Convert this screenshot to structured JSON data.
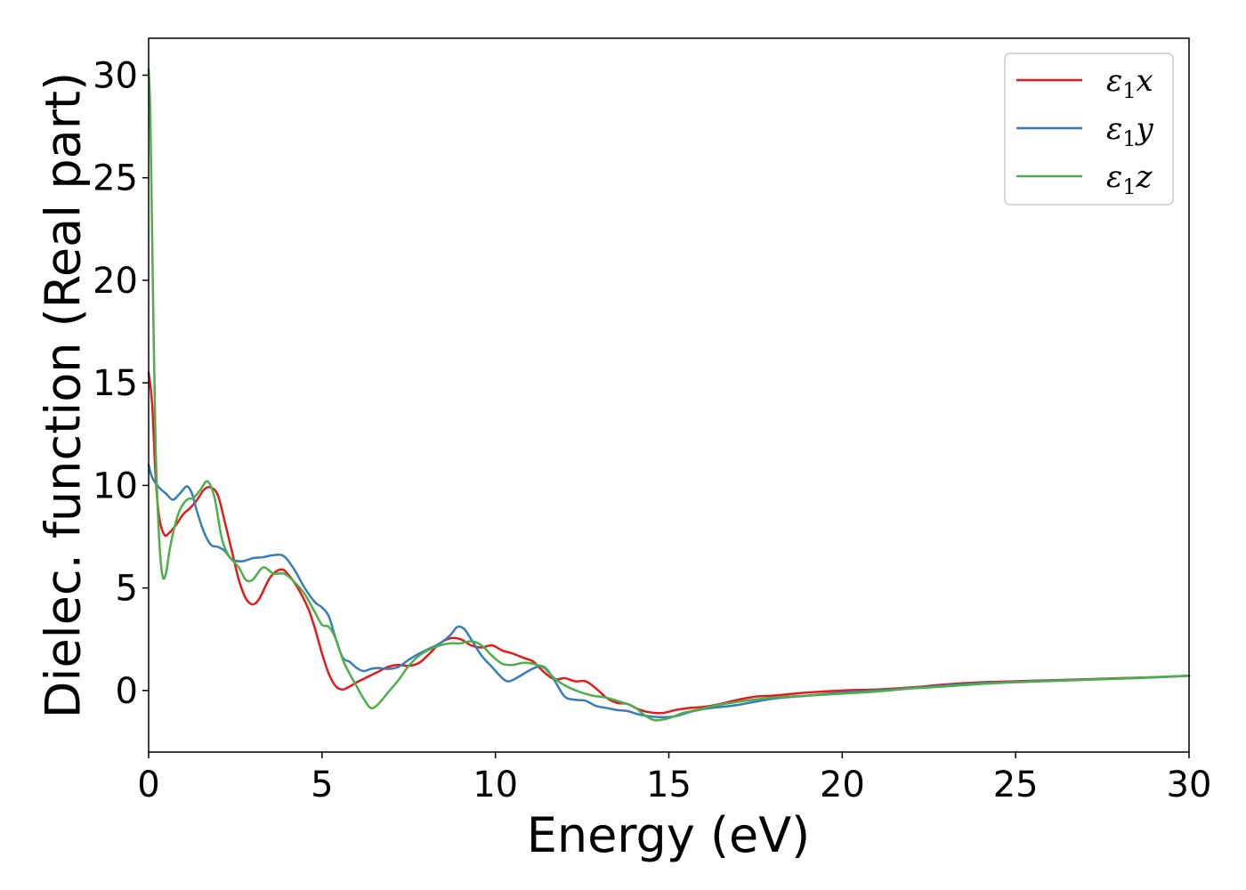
{
  "chart_data": {
    "type": "line",
    "xlabel": "Energy (eV)",
    "ylabel": "Dielec. function (Real part)",
    "xlim": [
      0,
      30
    ],
    "ylim": [
      -3,
      31.8
    ],
    "xticks": [
      0,
      5,
      10,
      15,
      20,
      25,
      30
    ],
    "yticks": [
      0,
      5,
      10,
      15,
      20,
      25,
      30
    ],
    "grid": false,
    "legend_position": "top-right",
    "series": [
      {
        "name": "ε1x",
        "legend": {
          "symbol": "ε",
          "sub": "1",
          "var": "x"
        },
        "color": "#e41a1c",
        "x": [
          0,
          0.1,
          0.2,
          0.3,
          0.45,
          0.6,
          0.8,
          1.0,
          1.2,
          1.4,
          1.6,
          1.8,
          2.0,
          2.2,
          2.4,
          2.6,
          2.8,
          3.0,
          3.2,
          3.5,
          3.8,
          4.0,
          4.3,
          4.6,
          4.8,
          5.0,
          5.2,
          5.4,
          5.6,
          5.8,
          6.0,
          6.3,
          6.6,
          6.9,
          7.2,
          7.5,
          7.8,
          8.1,
          8.4,
          8.7,
          9.0,
          9.3,
          9.6,
          9.9,
          10.2,
          10.5,
          10.8,
          11.1,
          11.4,
          11.7,
          12.0,
          12.3,
          12.6,
          12.9,
          13.2,
          13.5,
          13.8,
          14.1,
          14.4,
          14.8,
          15.2,
          15.6,
          16.0,
          16.5,
          17.0,
          17.5,
          18.0,
          19.0,
          20.0,
          21.0,
          22.0,
          23.0,
          24.0,
          25.0,
          26.0,
          27.0,
          28.0,
          29.0,
          30.0
        ],
        "y": [
          15.5,
          14.0,
          10.5,
          8.5,
          7.6,
          7.7,
          8.1,
          8.6,
          8.9,
          9.3,
          9.8,
          9.9,
          9.5,
          8.2,
          6.8,
          5.4,
          4.5,
          4.2,
          4.5,
          5.5,
          5.9,
          5.7,
          5.0,
          4.0,
          3.0,
          1.8,
          0.8,
          0.2,
          0.05,
          0.2,
          0.4,
          0.65,
          0.9,
          1.15,
          1.25,
          1.2,
          1.35,
          1.8,
          2.3,
          2.55,
          2.5,
          2.2,
          2.1,
          2.2,
          1.95,
          1.8,
          1.6,
          1.4,
          0.9,
          0.55,
          0.6,
          0.45,
          0.45,
          0.1,
          -0.35,
          -0.6,
          -0.65,
          -0.9,
          -1.05,
          -1.1,
          -0.95,
          -0.85,
          -0.8,
          -0.65,
          -0.45,
          -0.3,
          -0.25,
          -0.1,
          0.0,
          0.05,
          0.15,
          0.3,
          0.4,
          0.45,
          0.5,
          0.55,
          0.6,
          0.65,
          0.72
        ]
      },
      {
        "name": "ε1y",
        "legend": {
          "symbol": "ε",
          "sub": "1",
          "var": "y"
        },
        "color": "#377eb8",
        "x": [
          0,
          0.1,
          0.3,
          0.5,
          0.7,
          0.9,
          1.1,
          1.25,
          1.4,
          1.6,
          1.8,
          2.0,
          2.2,
          2.4,
          2.7,
          3.0,
          3.3,
          3.6,
          3.9,
          4.2,
          4.5,
          4.8,
          5.0,
          5.2,
          5.4,
          5.6,
          5.8,
          6.0,
          6.2,
          6.4,
          6.6,
          6.9,
          7.2,
          7.5,
          7.8,
          8.1,
          8.4,
          8.7,
          8.9,
          9.1,
          9.3,
          9.6,
          9.9,
          10.2,
          10.4,
          10.7,
          11.0,
          11.3,
          11.5,
          11.7,
          12.0,
          12.3,
          12.6,
          12.9,
          13.2,
          13.5,
          13.8,
          14.1,
          14.4,
          14.8,
          15.2,
          15.6,
          16.0,
          16.5,
          17.0,
          18.0,
          19.0,
          20.0,
          21.0,
          22.0,
          23.0,
          24.0,
          25.0,
          26.0,
          27.0,
          28.0,
          29.0,
          30.0
        ],
        "y": [
          11.0,
          10.4,
          9.9,
          9.6,
          9.3,
          9.6,
          9.95,
          9.6,
          8.7,
          7.7,
          7.1,
          7.0,
          6.8,
          6.4,
          6.3,
          6.45,
          6.5,
          6.6,
          6.55,
          5.9,
          5.0,
          4.3,
          4.05,
          3.6,
          2.5,
          1.6,
          1.4,
          1.1,
          0.95,
          1.05,
          1.1,
          1.05,
          1.15,
          1.5,
          1.8,
          2.05,
          2.3,
          2.7,
          3.1,
          3.0,
          2.5,
          1.7,
          1.15,
          0.6,
          0.45,
          0.7,
          1.0,
          1.2,
          1.0,
          0.5,
          -0.3,
          -0.45,
          -0.5,
          -0.75,
          -0.85,
          -0.95,
          -1.0,
          -1.15,
          -1.25,
          -1.3,
          -1.25,
          -1.05,
          -0.9,
          -0.8,
          -0.7,
          -0.4,
          -0.25,
          -0.1,
          0.0,
          0.12,
          0.25,
          0.35,
          0.42,
          0.48,
          0.53,
          0.58,
          0.64,
          0.72
        ]
      },
      {
        "name": "ε1z",
        "legend": {
          "symbol": "ε",
          "sub": "1",
          "var": "z"
        },
        "color": "#4daf4a",
        "x": [
          0,
          0.05,
          0.12,
          0.2,
          0.3,
          0.4,
          0.5,
          0.6,
          0.75,
          0.9,
          1.1,
          1.3,
          1.5,
          1.7,
          1.9,
          2.1,
          2.3,
          2.6,
          2.8,
          3.0,
          3.3,
          3.6,
          3.9,
          4.2,
          4.5,
          4.8,
          5.0,
          5.2,
          5.4,
          5.6,
          5.8,
          6.0,
          6.2,
          6.4,
          6.6,
          6.9,
          7.2,
          7.5,
          7.8,
          8.1,
          8.4,
          8.7,
          9.0,
          9.3,
          9.6,
          9.9,
          10.2,
          10.5,
          10.8,
          11.1,
          11.4,
          11.7,
          12.0,
          12.4,
          12.8,
          13.2,
          13.6,
          14.0,
          14.3,
          14.6,
          15.0,
          15.4,
          15.8,
          16.3,
          17.0,
          18.0,
          19.0,
          20.0,
          21.0,
          22.0,
          23.0,
          24.0,
          25.0,
          26.0,
          27.0,
          28.0,
          29.0,
          30.0
        ],
        "y": [
          30.3,
          28.0,
          20.0,
          12.0,
          7.5,
          5.6,
          5.7,
          6.8,
          8.0,
          8.8,
          9.3,
          9.4,
          9.8,
          10.2,
          9.4,
          7.5,
          6.6,
          6.0,
          5.4,
          5.4,
          6.0,
          5.7,
          5.7,
          5.3,
          4.7,
          3.8,
          3.2,
          3.1,
          2.5,
          1.5,
          0.8,
          0.2,
          -0.4,
          -0.85,
          -0.7,
          -0.1,
          0.5,
          1.2,
          1.7,
          2.0,
          2.2,
          2.3,
          2.3,
          2.4,
          2.2,
          1.7,
          1.3,
          1.25,
          1.35,
          1.3,
          1.1,
          0.6,
          0.25,
          -0.05,
          -0.25,
          -0.35,
          -0.55,
          -0.8,
          -1.2,
          -1.45,
          -1.35,
          -1.1,
          -0.95,
          -0.75,
          -0.55,
          -0.35,
          -0.25,
          -0.15,
          -0.05,
          0.1,
          0.2,
          0.32,
          0.4,
          0.46,
          0.52,
          0.58,
          0.65,
          0.72
        ]
      }
    ]
  }
}
